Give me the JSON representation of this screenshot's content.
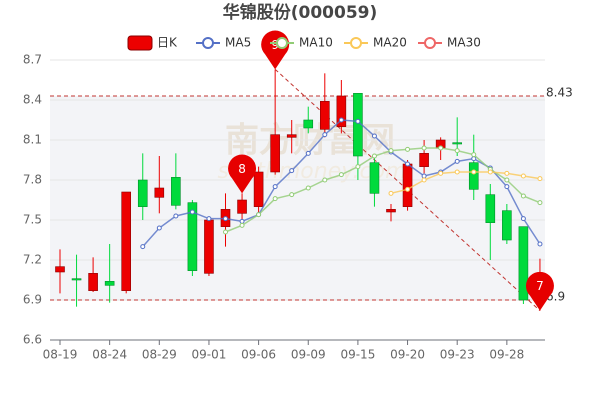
{
  "chart_data": {
    "type": "candlestick",
    "title": "华锦股份(000059)",
    "watermark": [
      "南方财富网",
      "southmoney.com"
    ],
    "categories": [
      "08-19",
      null,
      null,
      "08-24",
      null,
      null,
      "08-29",
      null,
      null,
      "09-01",
      null,
      null,
      "09-06",
      null,
      null,
      "09-09",
      null,
      null,
      "09-15",
      null,
      null,
      "09-20",
      null,
      null,
      "09-23",
      null,
      null,
      "09-28",
      null,
      null
    ],
    "candles": {
      "name": "日K",
      "up_color": "#ec0000",
      "down_color": "#00da3c",
      "open": [
        7.11,
        7.06,
        6.97,
        7.04,
        6.97,
        7.8,
        7.67,
        7.82,
        7.63,
        7.1,
        7.45,
        7.55,
        7.6,
        7.86,
        8.12,
        8.25,
        8.18,
        8.2,
        8.45,
        7.93,
        7.56,
        7.6,
        7.9,
        8.04,
        8.08,
        7.93,
        7.69,
        7.57,
        7.45,
        6.95
      ],
      "close": [
        7.15,
        7.05,
        7.1,
        7.01,
        7.71,
        7.6,
        7.74,
        7.61,
        7.12,
        7.5,
        7.58,
        7.65,
        7.86,
        8.14,
        8.14,
        8.19,
        8.39,
        8.43,
        7.98,
        7.7,
        7.58,
        7.92,
        8.0,
        8.1,
        8.07,
        7.73,
        7.48,
        7.35,
        6.9,
        7.08
      ],
      "high": [
        7.28,
        7.24,
        7.22,
        7.32,
        7.71,
        8.0,
        7.98,
        8.0,
        7.65,
        7.52,
        7.7,
        7.7,
        7.9,
        8.63,
        8.25,
        8.35,
        8.6,
        8.55,
        8.45,
        7.97,
        7.62,
        7.95,
        8.1,
        8.12,
        8.27,
        8.14,
        7.77,
        7.62,
        7.45,
        7.21
      ],
      "low": [
        6.95,
        6.85,
        6.96,
        6.88,
        6.95,
        7.5,
        7.55,
        7.58,
        7.08,
        7.08,
        7.3,
        7.5,
        7.55,
        7.84,
        8.0,
        8.15,
        8.12,
        8.15,
        7.8,
        7.6,
        7.49,
        7.57,
        7.85,
        7.95,
        7.98,
        7.65,
        7.2,
        7.32,
        6.87,
        6.82
      ]
    },
    "series": [
      {
        "name": "MA5",
        "color": "#5470c6",
        "values": [
          null,
          null,
          null,
          null,
          null,
          7.3,
          7.44,
          7.53,
          7.56,
          7.51,
          7.51,
          7.49,
          7.54,
          7.75,
          7.87,
          8.0,
          8.14,
          8.25,
          8.24,
          8.13,
          8.01,
          7.92,
          7.83,
          7.86,
          7.94,
          7.96,
          7.89,
          7.75,
          7.51,
          7.32
        ]
      },
      {
        "name": "MA10",
        "color": "#91cc75",
        "values": [
          null,
          null,
          null,
          null,
          null,
          null,
          null,
          null,
          null,
          null,
          7.41,
          7.46,
          7.54,
          7.66,
          7.69,
          7.74,
          7.8,
          7.84,
          7.9,
          7.98,
          8.02,
          8.03,
          8.04,
          8.04,
          8.02,
          7.99,
          7.88,
          7.8,
          7.68,
          7.63
        ]
      },
      {
        "name": "MA20",
        "color": "#fac858",
        "values": [
          null,
          null,
          null,
          null,
          null,
          null,
          null,
          null,
          null,
          null,
          null,
          null,
          null,
          null,
          null,
          null,
          null,
          null,
          null,
          null,
          7.7,
          7.73,
          7.8,
          7.85,
          7.86,
          7.86,
          7.86,
          7.85,
          7.83,
          7.81
        ]
      },
      {
        "name": "MA30",
        "color": "#ee6666",
        "values": [
          null,
          null,
          null,
          null,
          null,
          null,
          null,
          null,
          null,
          null,
          null,
          null,
          null,
          null,
          null,
          null,
          null,
          null,
          null,
          null,
          null,
          null,
          null,
          null,
          null,
          null,
          null,
          null,
          null,
          null
        ]
      }
    ],
    "mark_lines": [
      8.43,
      6.9
    ],
    "trend_line": {
      "x": [
        13,
        29
      ],
      "y": [
        8.63,
        6.82
      ]
    },
    "mark_points": [
      {
        "label": "9",
        "index": 13,
        "value": 8.63
      },
      {
        "label": "8",
        "index": 11,
        "value": 7.7
      },
      {
        "label": "7",
        "index": 29,
        "value": 6.82
      }
    ],
    "ylim": [
      6.6,
      8.7
    ],
    "yticks": [
      6.6,
      6.9,
      7.2,
      7.5,
      7.8,
      8.1,
      8.4,
      8.7
    ],
    "grid": true
  }
}
